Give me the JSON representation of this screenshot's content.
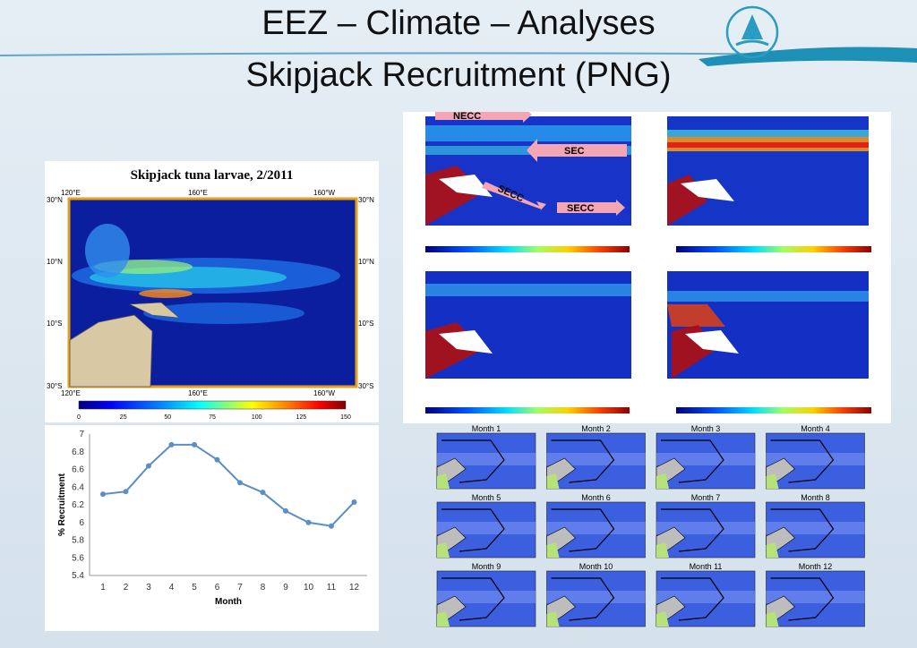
{
  "slide": {
    "title_line1": "EEZ – Climate – Analyses",
    "title_line2": "Skipjack Recruitment (PNG)"
  },
  "larvae_map": {
    "title": "Skipjack tuna larvae, 2/2011",
    "lon_labels": [
      "120°E",
      "160°E",
      "160°W"
    ],
    "lat_labels": [
      "30°N",
      "10°N",
      "10°S",
      "30°S"
    ],
    "colorbar_ticks": [
      "0",
      "25",
      "50",
      "75",
      "100",
      "125",
      "150"
    ],
    "colors": [
      "#00007f",
      "#0000ff",
      "#0080ff",
      "#00ffff",
      "#80ff80",
      "#ffff00",
      "#ff8000",
      "#ff0000",
      "#7f0000"
    ]
  },
  "current_maps": {
    "labels": [
      "NECC",
      "SEC",
      "SECC",
      "SECC"
    ],
    "arrow_color": "#f4a6b5"
  },
  "month_maps": {
    "labels": [
      "Month 1",
      "Month 2",
      "Month 3",
      "Month 4",
      "Month 5",
      "Month 6",
      "Month 7",
      "Month 8",
      "Month 9",
      "Month 10",
      "Month 11",
      "Month 12"
    ]
  },
  "chart_data": {
    "type": "line",
    "x": [
      1,
      2,
      3,
      4,
      5,
      6,
      7,
      8,
      9,
      10,
      11,
      12
    ],
    "values": [
      6.32,
      6.35,
      6.64,
      6.88,
      6.88,
      6.71,
      6.45,
      6.34,
      6.13,
      6.0,
      5.96,
      6.23
    ],
    "xlabel": "Month",
    "ylabel": "% Recruitment",
    "ylim": [
      5.4,
      7
    ],
    "yticks": [
      "7",
      "6.8",
      "6.6",
      "6.4",
      "6.2",
      "6",
      "5.8",
      "5.6",
      "5.4"
    ],
    "xticks": [
      "1",
      "2",
      "3",
      "4",
      "5",
      "6",
      "7",
      "8",
      "9",
      "10",
      "11",
      "12"
    ],
    "line_color": "#5b8ec4",
    "grid": false
  }
}
